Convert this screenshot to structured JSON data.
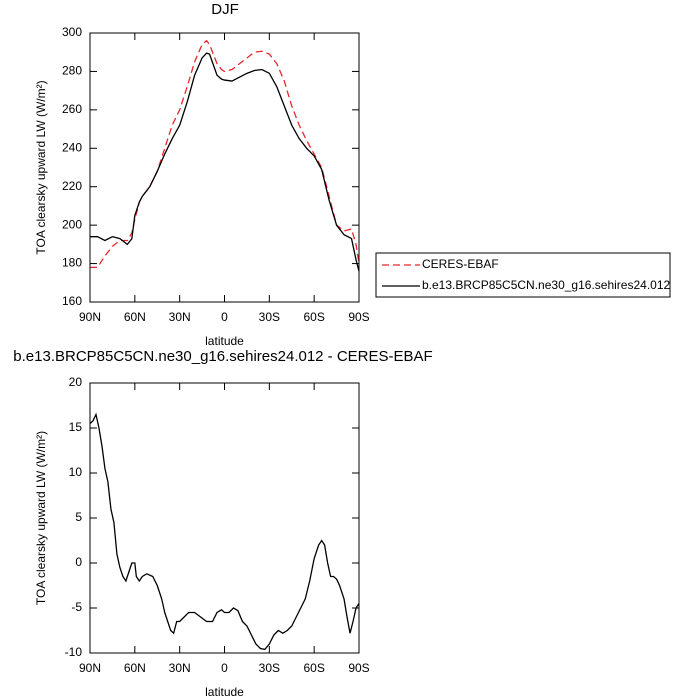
{
  "chart_data": [
    {
      "type": "line",
      "title": "DJF",
      "xlabel": "latitude",
      "ylabel": "TOA clearsky upward LW (W/m²)",
      "x": [
        90,
        85,
        80,
        75,
        70,
        65,
        62,
        60,
        57,
        55,
        50,
        45,
        40,
        35,
        30,
        25,
        20,
        15,
        12,
        10,
        5,
        2,
        0,
        -5,
        -10,
        -15,
        -20,
        -25,
        -30,
        -35,
        -40,
        -45,
        -50,
        -55,
        -60,
        -65,
        -70,
        -75,
        -80,
        -85,
        -88,
        -90
      ],
      "series": [
        {
          "name": "CERES-EBAF",
          "color": "#e8262a",
          "dash": "dashed",
          "values": [
            178,
            178,
            184,
            189,
            192,
            192,
            196,
            203,
            212,
            215,
            220,
            228,
            240,
            252,
            260,
            272,
            285,
            294,
            296,
            294,
            284,
            281,
            280,
            281,
            284,
            287,
            290,
            290.5,
            289,
            284,
            275,
            262,
            252,
            244,
            237,
            230,
            215,
            200,
            197,
            198,
            190,
            180
          ]
        },
        {
          "name": "b.e13.BRCP85C5CN.ne30_g16.sehires24.012",
          "color": "#000000",
          "dash": "solid",
          "values": [
            194,
            194,
            192,
            194,
            193,
            190,
            193,
            205,
            212,
            215,
            220,
            228,
            237,
            245,
            252,
            264,
            278,
            287,
            289.5,
            289,
            278,
            276,
            275.5,
            275,
            277,
            279,
            280.5,
            281,
            279,
            272,
            262,
            252,
            245,
            240,
            236,
            229,
            213,
            200,
            195,
            193,
            182,
            176
          ]
        }
      ],
      "xlim": [
        90,
        -90
      ],
      "xticks": [
        {
          "value": 90,
          "label": "90N"
        },
        {
          "value": 60,
          "label": "60N"
        },
        {
          "value": 30,
          "label": "30N"
        },
        0,
        {
          "value": -30,
          "label": "30S"
        },
        {
          "value": -60,
          "label": "60S"
        },
        {
          "value": -90,
          "label": "90S"
        }
      ],
      "ylim": [
        160,
        300
      ],
      "yticks": [
        160,
        180,
        200,
        220,
        240,
        260,
        280,
        300
      ],
      "legend": "outside-right"
    },
    {
      "type": "line",
      "title": "b.e13.BRCP85C5CN.ne30_g16.sehires24.012 - CERES-EBAF",
      "xlabel": "latitude",
      "ylabel": "TOA clearsky upward LW (W/m²)",
      "x": [
        90,
        88,
        86,
        84,
        82,
        80,
        78,
        76,
        74,
        72,
        70,
        68,
        66,
        64,
        62,
        60,
        59,
        57,
        55,
        52,
        48,
        45,
        42,
        40,
        38,
        36,
        34,
        32,
        30,
        27,
        24,
        20,
        16,
        12,
        8,
        5,
        2,
        0,
        -3,
        -6,
        -9,
        -12,
        -15,
        -18,
        -21,
        -24,
        -27,
        -30,
        -33,
        -36,
        -39,
        -42,
        -45,
        -48,
        -51,
        -54,
        -57,
        -60,
        -63,
        -65,
        -67,
        -69,
        -71,
        -73,
        -75,
        -77,
        -80,
        -82,
        -84,
        -86,
        -88,
        -90
      ],
      "values": [
        15.5,
        15.8,
        16.5,
        15,
        13,
        10.5,
        9,
        6,
        4.5,
        1,
        -0.5,
        -1.5,
        -2,
        -1,
        0,
        0,
        -1.5,
        -2,
        -1.5,
        -1.2,
        -1.5,
        -2.5,
        -4,
        -5.5,
        -6.5,
        -7.5,
        -7.8,
        -6.5,
        -6.5,
        -6,
        -5.5,
        -5.5,
        -6,
        -6.5,
        -6.5,
        -5.5,
        -5.2,
        -5.5,
        -5.5,
        -5,
        -5.3,
        -6.5,
        -7,
        -8,
        -9,
        -9.5,
        -9.6,
        -9,
        -8,
        -7.5,
        -7.8,
        -7.5,
        -7,
        -6,
        -5,
        -4,
        -2,
        0.5,
        2,
        2.5,
        2,
        0,
        -1.5,
        -1.5,
        -1.8,
        -2.5,
        -4,
        -6,
        -7.8,
        -6.5,
        -5,
        -4.5
      ],
      "color": "#000000",
      "xlim": [
        90,
        -90
      ],
      "xticks": [
        {
          "value": 90,
          "label": "90N"
        },
        {
          "value": 60,
          "label": "60N"
        },
        {
          "value": 30,
          "label": "30N"
        },
        0,
        {
          "value": -30,
          "label": "30S"
        },
        {
          "value": -60,
          "label": "60S"
        },
        {
          "value": -90,
          "label": "90S"
        }
      ],
      "ylim": [
        -10,
        20
      ],
      "yticks": [
        -10,
        -5,
        0,
        5,
        10,
        15,
        20
      ]
    }
  ]
}
